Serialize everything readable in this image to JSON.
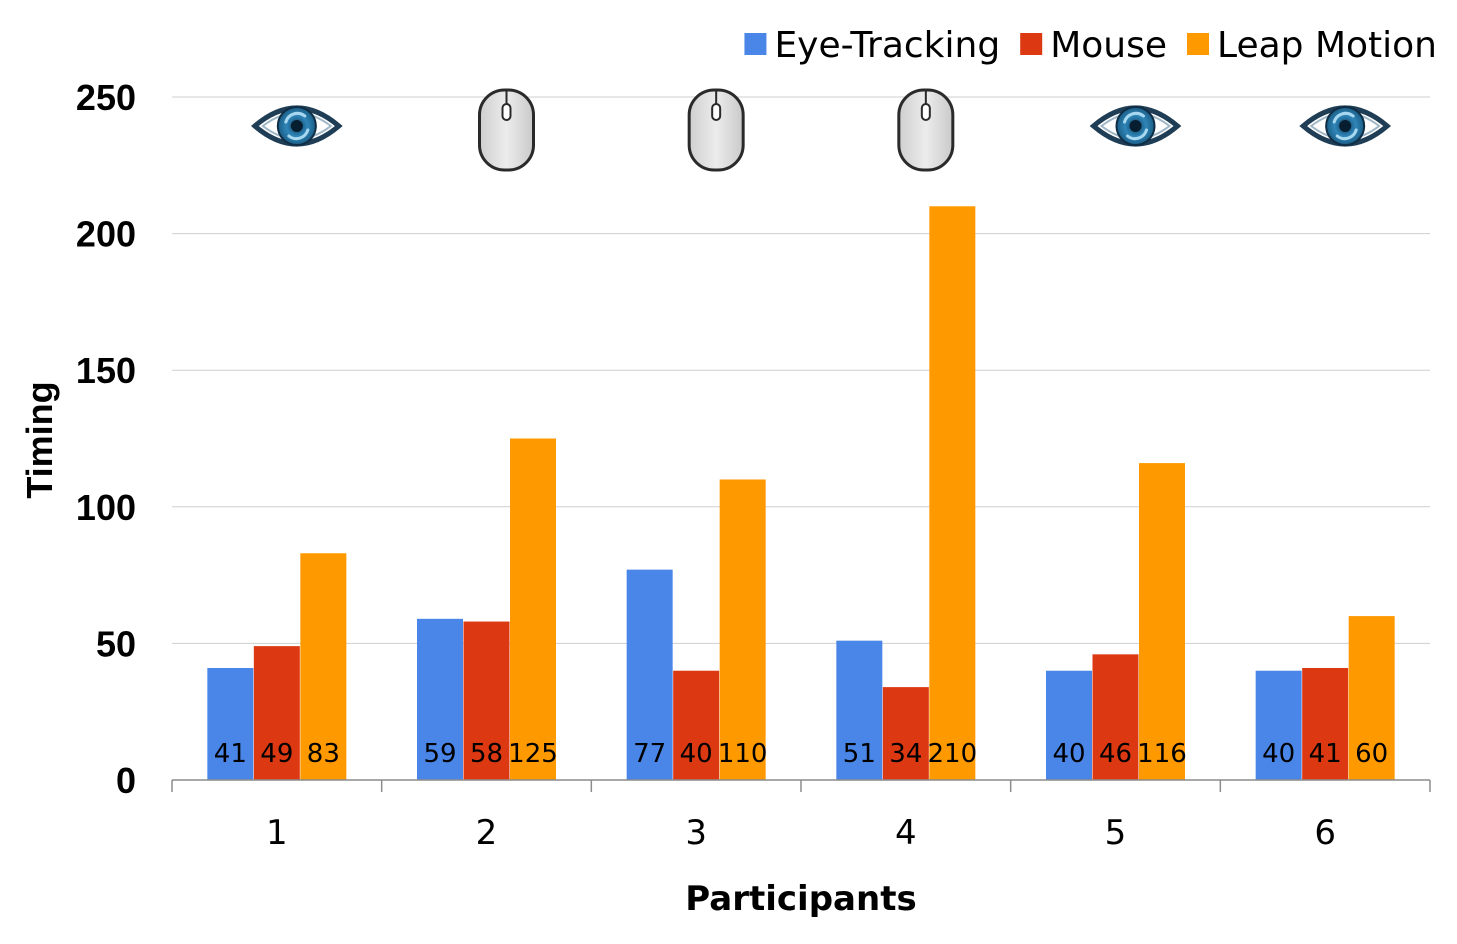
{
  "chart_data": {
    "type": "bar",
    "categories": [
      "1",
      "2",
      "3",
      "4",
      "5",
      "6"
    ],
    "series": [
      {
        "name": "Eye-Tracking",
        "color": "#4a86e8",
        "values": [
          41,
          59,
          77,
          51,
          40,
          40
        ]
      },
      {
        "name": "Mouse",
        "color": "#dc3912",
        "values": [
          49,
          58,
          40,
          34,
          46,
          41
        ]
      },
      {
        "name": "Leap Motion",
        "color": "#ff9900",
        "values": [
          83,
          125,
          110,
          210,
          116,
          60
        ]
      }
    ],
    "title": "",
    "xlabel": "Participants",
    "ylabel": "Timing",
    "ylim": [
      0,
      250
    ],
    "yticks": [
      0,
      50,
      100,
      150,
      200,
      250
    ],
    "grid": true,
    "legend": "top-right",
    "category_icons": [
      "eye-icon",
      "mouse-icon",
      "mouse-icon",
      "mouse-icon",
      "eye-icon",
      "eye-icon"
    ]
  }
}
